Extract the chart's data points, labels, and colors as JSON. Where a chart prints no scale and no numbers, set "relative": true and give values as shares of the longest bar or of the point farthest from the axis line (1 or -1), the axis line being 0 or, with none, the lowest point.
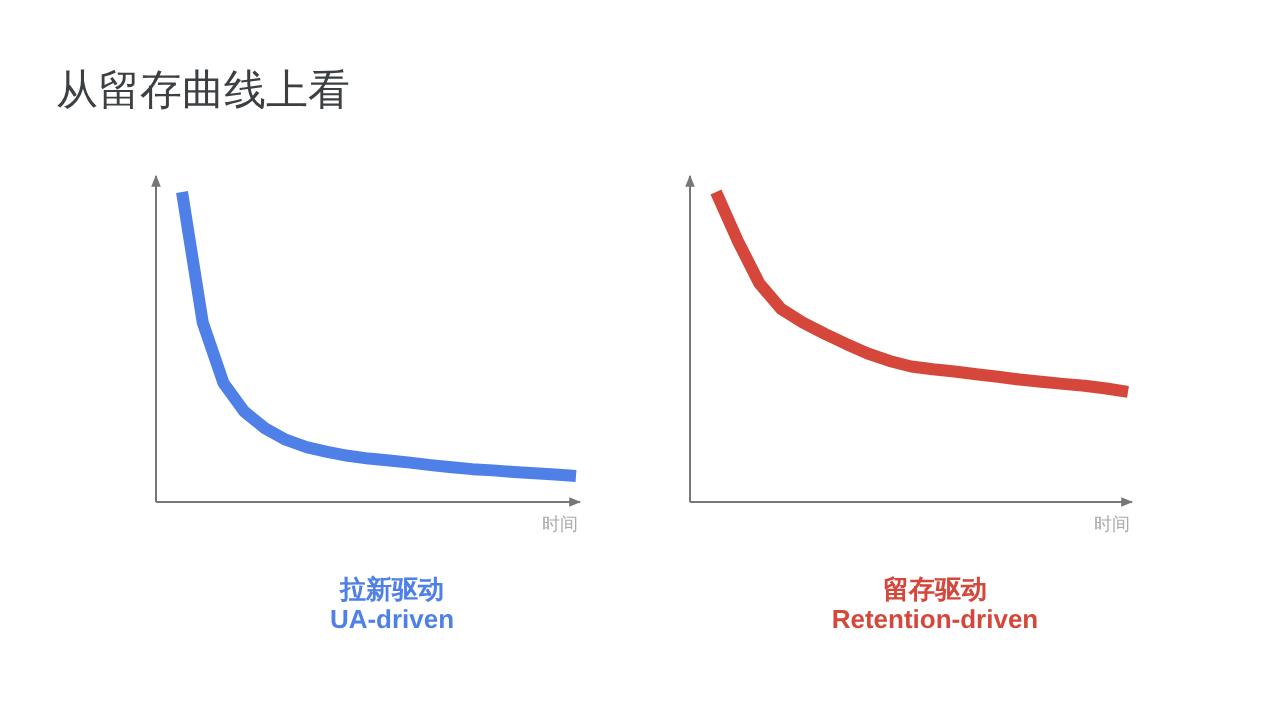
{
  "chart_data": [
    {
      "type": "line",
      "title": "从留存曲线上看",
      "relative": true,
      "xlabel": "时间",
      "categories": [
        null,
        null,
        null,
        null,
        null,
        null,
        null,
        null,
        null,
        null,
        null,
        null,
        null,
        null,
        null,
        null,
        null,
        null,
        null,
        null
      ],
      "line_style": "solid",
      "marker": "none",
      "series": [
        {
          "color": "#4f80e8",
          "values": [
            1,
            0.579,
            0.384,
            0.292,
            0.238,
            0.201,
            0.177,
            0.162,
            0.149,
            0.14,
            0.134,
            0.127,
            0.119,
            0.112,
            0.106,
            0.102,
            0.097,
            0.093,
            0.089,
            0.084
          ]
        }
      ],
      "annotations": [
        "拉新驱动",
        "UA-driven"
      ]
    },
    {
      "type": "line",
      "relative": true,
      "xlabel": "时间",
      "categories": [
        null,
        null,
        null,
        null,
        null,
        null,
        null,
        null,
        null,
        null,
        null,
        null,
        null,
        null,
        null,
        null,
        null,
        null,
        null,
        null
      ],
      "line_style": "solid",
      "marker": "none",
      "series": [
        {
          "color": "#d5473a",
          "values": [
            1,
            0.843,
            0.705,
            0.623,
            0.579,
            0.543,
            0.51,
            0.479,
            0.455,
            0.437,
            0.428,
            0.421,
            0.412,
            0.404,
            0.395,
            0.388,
            0.381,
            0.375,
            0.366,
            0.355
          ]
        }
      ],
      "annotations": [
        "留存驱动",
        "Retention-driven"
      ]
    }
  ]
}
